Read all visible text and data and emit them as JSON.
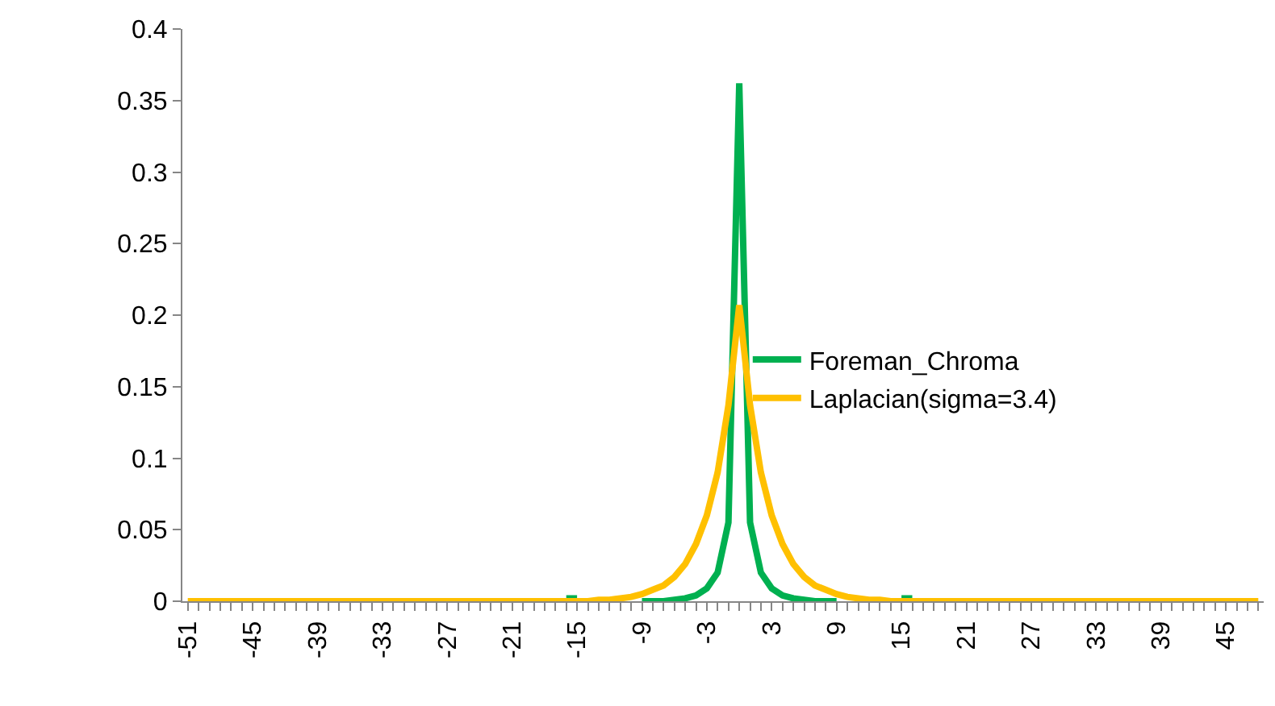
{
  "chart_data": {
    "type": "line",
    "categories": [
      "-51",
      null,
      null,
      null,
      null,
      null,
      "-45",
      null,
      null,
      null,
      null,
      null,
      "-39",
      null,
      null,
      null,
      null,
      null,
      "-33",
      null,
      null,
      null,
      null,
      null,
      "-27",
      null,
      null,
      null,
      null,
      null,
      "-21",
      null,
      null,
      null,
      null,
      null,
      "-15",
      null,
      null,
      null,
      null,
      null,
      "-9",
      null,
      null,
      null,
      null,
      null,
      "-3",
      null,
      null,
      null,
      null,
      null,
      "3",
      null,
      null,
      null,
      null,
      null,
      "9",
      null,
      null,
      null,
      null,
      null,
      "15",
      null,
      null,
      null,
      null,
      null,
      "21",
      null,
      null,
      null,
      null,
      null,
      "27",
      null,
      null,
      null,
      null,
      null,
      "33",
      null,
      null,
      null,
      null,
      null,
      "39",
      null,
      null,
      null,
      null,
      null,
      "45",
      null,
      null,
      null
    ],
    "series": [
      {
        "name": "Foreman_Chroma",
        "color": "#00b050",
        "values": [
          null,
          null,
          null,
          null,
          null,
          null,
          null,
          null,
          null,
          null,
          null,
          null,
          null,
          null,
          null,
          null,
          null,
          null,
          null,
          null,
          null,
          null,
          null,
          null,
          null,
          null,
          null,
          null,
          null,
          null,
          null,
          null,
          null,
          null,
          null,
          0.002,
          0.002,
          null,
          null,
          null,
          null,
          null,
          0,
          0,
          0,
          0.001,
          0.002,
          0.004,
          0.009,
          0.02,
          0.055,
          0.362,
          0.055,
          0.02,
          0.009,
          0.004,
          0.002,
          0.001,
          0,
          0,
          0,
          null,
          null,
          null,
          null,
          null,
          0.002,
          0.002,
          null,
          null,
          null,
          null,
          null,
          null,
          null,
          null,
          null,
          null,
          null,
          null,
          null,
          null,
          null,
          null,
          null,
          null,
          null,
          null,
          null,
          null,
          null,
          null,
          null,
          null,
          null,
          null,
          null,
          null,
          null,
          null
        ]
      },
      {
        "name": "Laplacian(sigma=3.4)",
        "color": "#ffc000",
        "values": [
          0,
          0,
          0,
          0,
          0,
          0,
          0,
          0,
          0,
          0,
          0,
          0,
          0,
          0,
          0,
          0,
          0,
          0,
          0,
          0,
          0,
          0,
          0,
          0,
          0,
          0,
          0,
          0,
          0,
          0,
          0,
          0,
          0,
          0,
          0,
          0,
          0,
          0,
          0.001,
          0.001,
          0.002,
          0.003,
          0.005,
          0.008,
          0.011,
          0.017,
          0.026,
          0.04,
          0.06,
          0.09,
          0.137,
          0.207,
          0.137,
          0.09,
          0.06,
          0.04,
          0.026,
          0.017,
          0.011,
          0.008,
          0.005,
          0.003,
          0.002,
          0.001,
          0.001,
          0,
          0,
          0,
          0,
          0,
          0,
          0,
          0,
          0,
          0,
          0,
          0,
          0,
          0,
          0,
          0,
          0,
          0,
          0,
          0,
          0,
          0,
          0,
          0,
          0,
          0,
          0,
          0,
          0,
          0,
          0,
          0,
          0,
          0,
          0
        ]
      }
    ],
    "ylim": [
      0,
      0.4
    ],
    "yticks": [
      0,
      0.05,
      0.1,
      0.15,
      0.2,
      0.25,
      0.3,
      0.35,
      0.4
    ],
    "legend": "right",
    "marker": "none",
    "line_style": "solid"
  }
}
